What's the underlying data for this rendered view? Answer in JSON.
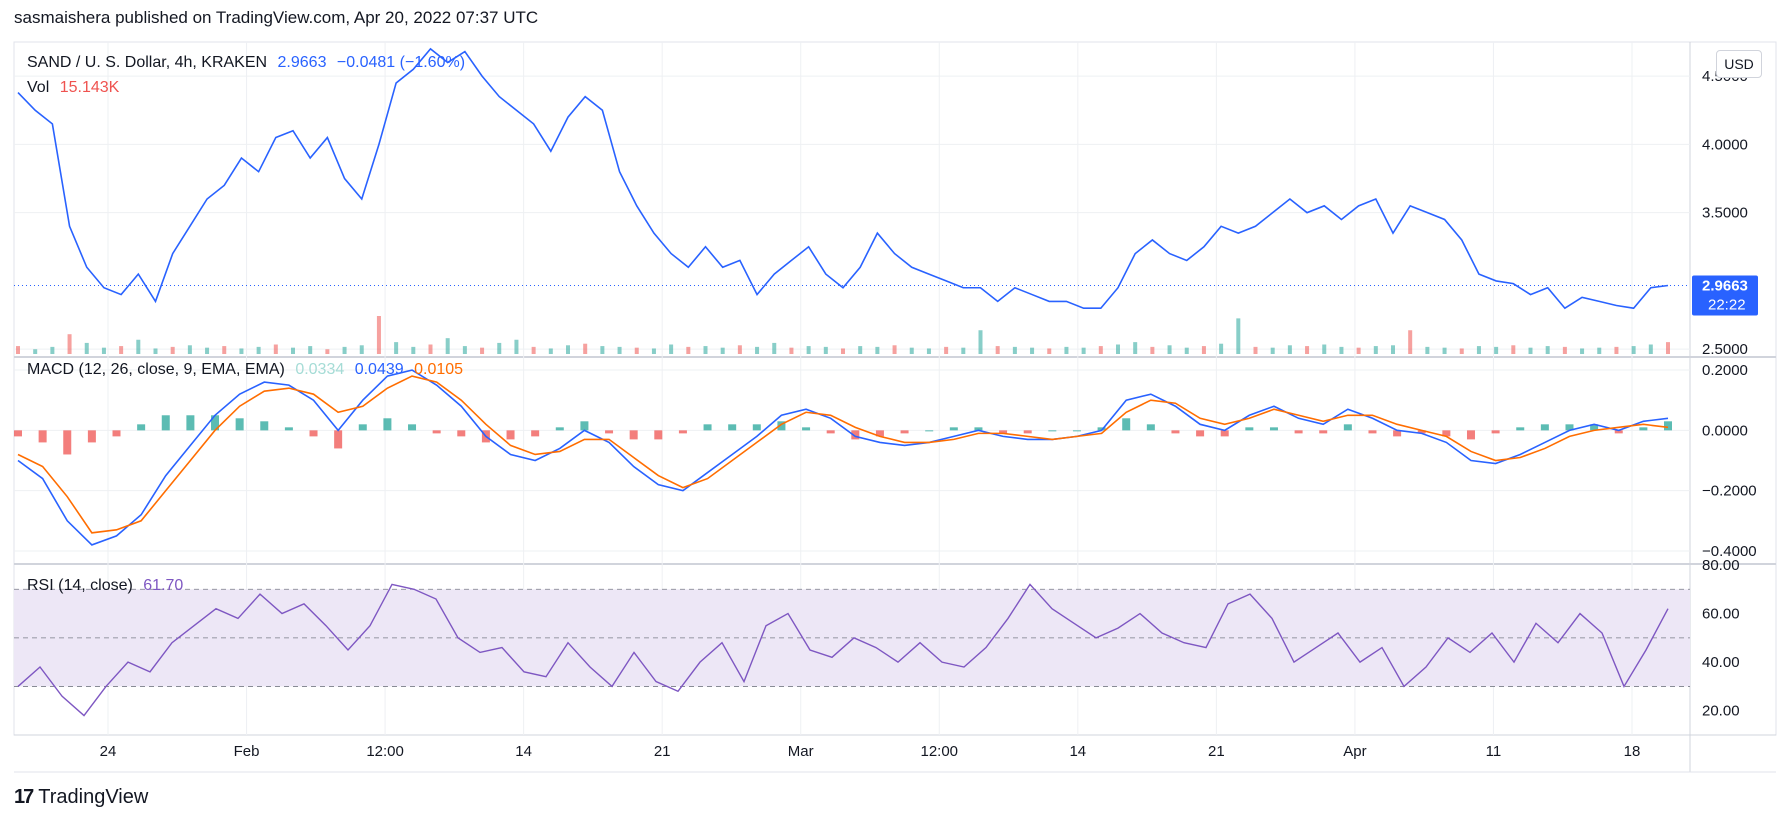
{
  "header": {
    "published": "sasmaishera published on TradingView.com, Apr 20, 2022 07:37 UTC"
  },
  "price_legend": {
    "symbol": "SAND / U. S. Dollar, 4h, KRAKEN",
    "price": "2.9663",
    "change": "−0.0481 (−1.60%)",
    "vol_label": "Vol",
    "vol_value": "15.143K"
  },
  "macd_legend": {
    "label": "MACD (12, 26, close, 9, EMA, EMA)",
    "hist": "0.0334",
    "macd": "0.0439",
    "signal": "0.0105"
  },
  "rsi_legend": {
    "label": "RSI (14, close)",
    "value": "61.70"
  },
  "axis": {
    "currency": "USD",
    "price_ticks": [
      "4.5000",
      "4.0000",
      "3.5000",
      "2.5000"
    ],
    "price_tag": "2.9663",
    "countdown": "22:22",
    "macd_ticks": [
      "0.2000",
      "0.0000",
      "−0.2000",
      "−0.4000"
    ],
    "rsi_ticks": [
      "80.00",
      "60.00",
      "40.00",
      "20.00"
    ],
    "time_ticks": [
      "24",
      "Feb",
      "12:00",
      "14",
      "21",
      "Mar",
      "12:00",
      "14",
      "21",
      "Apr",
      "11",
      "18"
    ]
  },
  "footer": {
    "logo_mark": "17",
    "brand": "TradingView"
  },
  "colors": {
    "price": "#2962ff",
    "macd": "#2962ff",
    "signal": "#ff6d00",
    "hist_up": "#26a69a",
    "hist_down": "#ef5350",
    "rsi": "#7e57c2",
    "rsi_band": "#ede7f6",
    "grid": "#eef0f3"
  },
  "chart_data": [
    {
      "type": "line",
      "title": "SAND / U. S. Dollar, 4h, KRAKEN",
      "x_ticks": [
        "24",
        "Feb",
        "12:00",
        "14",
        "21",
        "Mar",
        "12:00",
        "14",
        "21",
        "Apr",
        "11",
        "18"
      ],
      "ylim": [
        2.45,
        4.75
      ],
      "y_ticks": [
        4.5,
        4.0,
        3.5,
        2.5
      ],
      "series": [
        {
          "name": "SAND / U. S. Dollar",
          "values": [
            4.38,
            4.25,
            4.15,
            3.4,
            3.1,
            2.95,
            2.9,
            3.05,
            2.85,
            3.2,
            3.4,
            3.6,
            3.7,
            3.9,
            3.8,
            4.05,
            4.1,
            3.9,
            4.05,
            3.75,
            3.6,
            4.0,
            4.45,
            4.55,
            4.7,
            4.6,
            4.68,
            4.5,
            4.35,
            4.25,
            4.15,
            3.95,
            4.2,
            4.35,
            4.25,
            3.8,
            3.55,
            3.35,
            3.2,
            3.1,
            3.25,
            3.1,
            3.15,
            2.9,
            3.05,
            3.15,
            3.25,
            3.05,
            2.95,
            3.1,
            3.35,
            3.2,
            3.1,
            3.05,
            3.0,
            2.95,
            2.95,
            2.85,
            2.95,
            2.9,
            2.85,
            2.85,
            2.8,
            2.8,
            2.95,
            3.2,
            3.3,
            3.2,
            3.15,
            3.25,
            3.4,
            3.35,
            3.4,
            3.5,
            3.6,
            3.5,
            3.55,
            3.45,
            3.55,
            3.6,
            3.35,
            3.55,
            3.5,
            3.45,
            3.3,
            3.05,
            3.0,
            2.98,
            2.9,
            2.95,
            2.8,
            2.88,
            2.85,
            2.82,
            2.8,
            2.95,
            2.9663
          ]
        },
        {
          "name": "Vol",
          "values": [
            10,
            6,
            9,
            25,
            14,
            8,
            10,
            18,
            7,
            9,
            11,
            8,
            10,
            7,
            9,
            12,
            8,
            10,
            6,
            9,
            11,
            48,
            15,
            9,
            12,
            20,
            10,
            8,
            14,
            18,
            9,
            7,
            11,
            13,
            10,
            9,
            8,
            7,
            12,
            9,
            10,
            8,
            11,
            9,
            14,
            8,
            10,
            9,
            7,
            10,
            9,
            11,
            8,
            7,
            9,
            8,
            30,
            10,
            9,
            8,
            7,
            9,
            8,
            10,
            12,
            15,
            9,
            11,
            8,
            10,
            13,
            45,
            9,
            8,
            11,
            10,
            12,
            9,
            8,
            10,
            11,
            30,
            9,
            8,
            7,
            10,
            9,
            11,
            8,
            10,
            9,
            7,
            8,
            9,
            10,
            12,
            15
          ]
        }
      ]
    },
    {
      "type": "line",
      "title": "MACD (12, 26, close, 9, EMA, EMA)",
      "ylim": [
        -0.44,
        0.24
      ],
      "y_ticks": [
        0.2,
        0.0,
        -0.2,
        -0.4
      ],
      "series": [
        {
          "name": "MACD",
          "values": [
            -0.1,
            -0.16,
            -0.3,
            -0.38,
            -0.35,
            -0.28,
            -0.15,
            -0.05,
            0.05,
            0.12,
            0.16,
            0.15,
            0.1,
            0.0,
            0.1,
            0.18,
            0.2,
            0.15,
            0.08,
            -0.02,
            -0.08,
            -0.1,
            -0.06,
            0.0,
            -0.04,
            -0.12,
            -0.18,
            -0.2,
            -0.14,
            -0.08,
            -0.02,
            0.05,
            0.07,
            0.04,
            -0.02,
            -0.04,
            -0.05,
            -0.04,
            -0.02,
            0.0,
            -0.02,
            -0.03,
            -0.03,
            -0.02,
            0.0,
            0.1,
            0.12,
            0.08,
            0.02,
            0.0,
            0.05,
            0.08,
            0.04,
            0.02,
            0.07,
            0.04,
            0.0,
            -0.01,
            -0.04,
            -0.1,
            -0.11,
            -0.08,
            -0.04,
            0.0,
            0.02,
            0.0,
            0.03,
            0.04
          ]
        },
        {
          "name": "Signal",
          "values": [
            -0.08,
            -0.12,
            -0.22,
            -0.34,
            -0.33,
            -0.3,
            -0.2,
            -0.1,
            0.0,
            0.08,
            0.13,
            0.14,
            0.12,
            0.06,
            0.08,
            0.14,
            0.18,
            0.16,
            0.1,
            0.02,
            -0.05,
            -0.08,
            -0.07,
            -0.03,
            -0.03,
            -0.09,
            -0.15,
            -0.19,
            -0.16,
            -0.1,
            -0.04,
            0.02,
            0.06,
            0.05,
            0.01,
            -0.02,
            -0.04,
            -0.04,
            -0.03,
            -0.01,
            -0.01,
            -0.02,
            -0.03,
            -0.02,
            -0.01,
            0.06,
            0.1,
            0.09,
            0.04,
            0.02,
            0.04,
            0.07,
            0.05,
            0.03,
            0.05,
            0.05,
            0.02,
            0.0,
            -0.02,
            -0.07,
            -0.1,
            -0.09,
            -0.06,
            -0.02,
            0.0,
            0.01,
            0.02,
            0.01
          ]
        }
      ]
    },
    {
      "type": "line",
      "title": "RSI (14, close)",
      "ylim": [
        10,
        80
      ],
      "y_ticks": [
        80,
        60,
        40,
        20
      ],
      "series": [
        {
          "name": "RSI",
          "values": [
            30,
            38,
            26,
            18,
            30,
            40,
            36,
            48,
            55,
            62,
            58,
            68,
            60,
            64,
            55,
            45,
            55,
            72,
            70,
            66,
            50,
            44,
            46,
            36,
            34,
            48,
            38,
            30,
            44,
            32,
            28,
            40,
            48,
            32,
            55,
            60,
            45,
            42,
            50,
            46,
            40,
            48,
            40,
            38,
            46,
            58,
            72,
            62,
            56,
            50,
            54,
            60,
            52,
            48,
            46,
            64,
            68,
            58,
            40,
            46,
            52,
            40,
            46,
            30,
            38,
            50,
            44,
            52,
            40,
            56,
            48,
            60,
            52,
            30,
            45,
            62
          ]
        }
      ]
    }
  ]
}
